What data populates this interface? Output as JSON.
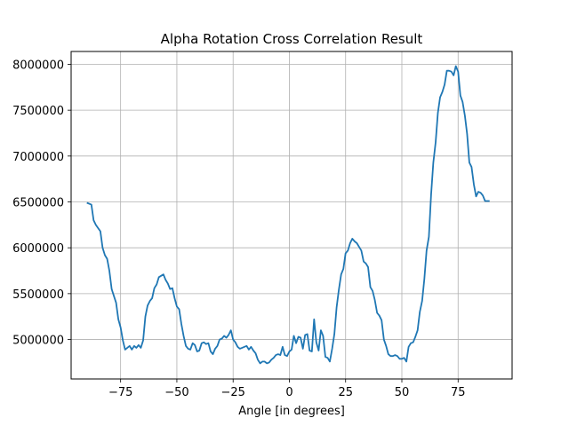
{
  "chart_data": {
    "type": "line",
    "title": "Alpha Rotation Cross Correlation Result",
    "xlabel": "Angle [in degrees]",
    "ylabel": "",
    "xlim": [
      -97,
      99
    ],
    "ylim": [
      4570000,
      8140000
    ],
    "grid": true,
    "line_color": "#1f77b4",
    "x_ticks": [
      -75,
      -50,
      -25,
      0,
      25,
      50,
      75
    ],
    "x_tick_labels": [
      "−75",
      "−50",
      "−25",
      "0",
      "25",
      "50",
      "75"
    ],
    "y_ticks": [
      5000000,
      5500000,
      6000000,
      6500000,
      7000000,
      7500000,
      8000000
    ],
    "y_tick_labels": [
      "5000000",
      "5500000",
      "6000000",
      "6500000",
      "7000000",
      "7500000",
      "8000000"
    ],
    "series": [
      {
        "name": "",
        "points": [
          [
            -90,
            6490000
          ],
          [
            -88,
            6470000
          ],
          [
            -87,
            6300000
          ],
          [
            -86,
            6250000
          ],
          [
            -84,
            6180000
          ],
          [
            -83,
            6000000
          ],
          [
            -82,
            5920000
          ],
          [
            -81,
            5880000
          ],
          [
            -80,
            5750000
          ],
          [
            -79,
            5550000
          ],
          [
            -77,
            5400000
          ],
          [
            -76,
            5220000
          ],
          [
            -75,
            5130000
          ],
          [
            -74,
            4990000
          ],
          [
            -73,
            4890000
          ],
          [
            -71,
            4930000
          ],
          [
            -70,
            4890000
          ],
          [
            -69,
            4930000
          ],
          [
            -68,
            4910000
          ],
          [
            -67,
            4940000
          ],
          [
            -66,
            4910000
          ],
          [
            -65,
            4990000
          ],
          [
            -64,
            5250000
          ],
          [
            -63,
            5370000
          ],
          [
            -62,
            5420000
          ],
          [
            -61,
            5450000
          ],
          [
            -60,
            5560000
          ],
          [
            -59,
            5600000
          ],
          [
            -58,
            5680000
          ],
          [
            -56,
            5710000
          ],
          [
            -55,
            5650000
          ],
          [
            -54,
            5610000
          ],
          [
            -53,
            5550000
          ],
          [
            -52,
            5560000
          ],
          [
            -51,
            5450000
          ],
          [
            -50,
            5360000
          ],
          [
            -49,
            5330000
          ],
          [
            -48,
            5170000
          ],
          [
            -47,
            5040000
          ],
          [
            -46,
            4930000
          ],
          [
            -45,
            4900000
          ],
          [
            -44,
            4890000
          ],
          [
            -43,
            4960000
          ],
          [
            -42,
            4940000
          ],
          [
            -41,
            4870000
          ],
          [
            -40,
            4880000
          ],
          [
            -39,
            4960000
          ],
          [
            -38,
            4970000
          ],
          [
            -37,
            4950000
          ],
          [
            -36,
            4960000
          ],
          [
            -35,
            4870000
          ],
          [
            -34,
            4840000
          ],
          [
            -33,
            4900000
          ],
          [
            -32,
            4930000
          ],
          [
            -31,
            5000000
          ],
          [
            -30,
            5010000
          ],
          [
            -29,
            5040000
          ],
          [
            -28,
            5020000
          ],
          [
            -27,
            5050000
          ],
          [
            -26,
            5100000
          ],
          [
            -25,
            5000000
          ],
          [
            -24,
            4970000
          ],
          [
            -23,
            4920000
          ],
          [
            -22,
            4900000
          ],
          [
            -21,
            4910000
          ],
          [
            -20,
            4920000
          ],
          [
            -19,
            4930000
          ],
          [
            -18,
            4890000
          ],
          [
            -17,
            4920000
          ],
          [
            -16,
            4880000
          ],
          [
            -15,
            4850000
          ],
          [
            -14,
            4780000
          ],
          [
            -13,
            4740000
          ],
          [
            -12,
            4760000
          ],
          [
            -11,
            4760000
          ],
          [
            -10,
            4740000
          ],
          [
            -9,
            4750000
          ],
          [
            -8,
            4780000
          ],
          [
            -7,
            4800000
          ],
          [
            -6,
            4830000
          ],
          [
            -5,
            4840000
          ],
          [
            -4,
            4830000
          ],
          [
            -3,
            4920000
          ],
          [
            -2,
            4830000
          ],
          [
            -1,
            4820000
          ],
          [
            0,
            4870000
          ],
          [
            1,
            4890000
          ],
          [
            2,
            5040000
          ],
          [
            3,
            4960000
          ],
          [
            4,
            5030000
          ],
          [
            5,
            5020000
          ],
          [
            6,
            4900000
          ],
          [
            7,
            5050000
          ],
          [
            8,
            5060000
          ],
          [
            9,
            4880000
          ],
          [
            10,
            4870000
          ],
          [
            11,
            5220000
          ],
          [
            12,
            4970000
          ],
          [
            13,
            4880000
          ],
          [
            14,
            5100000
          ],
          [
            15,
            5040000
          ],
          [
            16,
            4810000
          ],
          [
            17,
            4800000
          ],
          [
            18,
            4760000
          ],
          [
            19,
            4900000
          ],
          [
            20,
            5060000
          ],
          [
            21,
            5350000
          ],
          [
            22,
            5540000
          ],
          [
            23,
            5710000
          ],
          [
            24,
            5770000
          ],
          [
            25,
            5940000
          ],
          [
            26,
            5970000
          ],
          [
            27,
            6050000
          ],
          [
            28,
            6100000
          ],
          [
            29,
            6070000
          ],
          [
            30,
            6050000
          ],
          [
            31,
            6010000
          ],
          [
            32,
            5970000
          ],
          [
            33,
            5850000
          ],
          [
            34,
            5830000
          ],
          [
            35,
            5790000
          ],
          [
            36,
            5570000
          ],
          [
            37,
            5530000
          ],
          [
            38,
            5430000
          ],
          [
            39,
            5290000
          ],
          [
            40,
            5260000
          ],
          [
            41,
            5210000
          ],
          [
            42,
            5000000
          ],
          [
            43,
            4930000
          ],
          [
            44,
            4840000
          ],
          [
            45,
            4820000
          ],
          [
            46,
            4820000
          ],
          [
            47,
            4830000
          ],
          [
            48,
            4820000
          ],
          [
            49,
            4790000
          ],
          [
            50,
            4790000
          ],
          [
            51,
            4800000
          ],
          [
            52,
            4760000
          ],
          [
            53,
            4920000
          ],
          [
            54,
            4960000
          ],
          [
            55,
            4970000
          ],
          [
            56,
            5030000
          ],
          [
            57,
            5100000
          ],
          [
            58,
            5300000
          ],
          [
            59,
            5420000
          ],
          [
            60,
            5660000
          ],
          [
            61,
            5970000
          ],
          [
            62,
            6120000
          ],
          [
            63,
            6580000
          ],
          [
            64,
            6930000
          ],
          [
            65,
            7150000
          ],
          [
            66,
            7470000
          ],
          [
            67,
            7640000
          ],
          [
            68,
            7700000
          ],
          [
            69,
            7780000
          ],
          [
            70,
            7930000
          ],
          [
            71,
            7930000
          ],
          [
            72,
            7920000
          ],
          [
            73,
            7880000
          ],
          [
            74,
            7980000
          ],
          [
            75,
            7920000
          ],
          [
            76,
            7660000
          ],
          [
            77,
            7590000
          ],
          [
            78,
            7440000
          ],
          [
            79,
            7240000
          ],
          [
            80,
            6930000
          ],
          [
            81,
            6880000
          ],
          [
            82,
            6690000
          ],
          [
            83,
            6560000
          ],
          [
            84,
            6610000
          ],
          [
            85,
            6600000
          ],
          [
            86,
            6570000
          ],
          [
            87,
            6510000
          ],
          [
            89,
            6510000
          ]
        ]
      }
    ]
  }
}
